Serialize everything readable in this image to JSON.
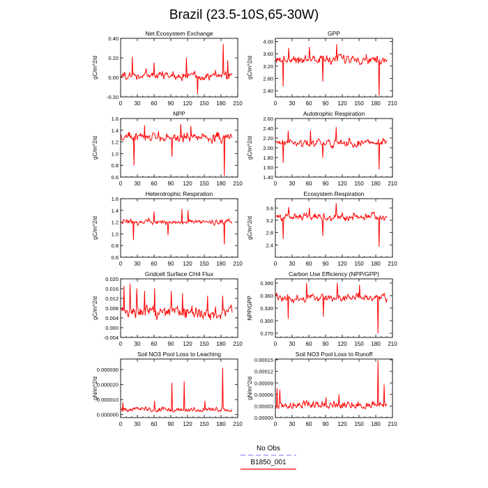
{
  "figure": {
    "title": "Brazil (23.5-10S,65-30W)"
  },
  "legend": {
    "entries": [
      {
        "label": "No Obs",
        "color": "#8c8cff",
        "style": "dashed"
      },
      {
        "label": "B1850_001",
        "color": "#ff0000",
        "style": "solid"
      }
    ]
  },
  "colors": {
    "series": "#ff0000"
  },
  "chart_data": [
    {
      "type": "line",
      "title": "Net Ecosystem Exchange",
      "ylabel": "gC/m^2/d",
      "xlim": [
        0,
        210
      ],
      "xticks": [
        0,
        30,
        60,
        90,
        120,
        150,
        180,
        210
      ],
      "ylim": [
        -0.2,
        0.4
      ],
      "yticks": [
        "-0.20",
        "0.00",
        "0.20",
        "0.40"
      ],
      "ytickvals": [
        -0.2,
        0,
        0.2,
        0.4
      ],
      "series": [
        {
          "length": 200,
          "base": 0.02,
          "amp": 0.07,
          "min": -0.17,
          "max": 0.34,
          "peaks": [
            [
              183,
              0.34
            ],
            [
              137,
              -0.17
            ],
            [
              20,
              0.21
            ],
            [
              117,
              0.2
            ],
            [
              59,
              0.15
            ],
            [
              191,
              0.17
            ]
          ]
        }
      ]
    },
    {
      "type": "line",
      "title": "GPP",
      "ylabel": "gC/m^2/d",
      "xlim": [
        0,
        210
      ],
      "xticks": [
        0,
        30,
        60,
        90,
        120,
        150,
        180,
        210
      ],
      "ylim": [
        2.2,
        4.1
      ],
      "yticks": [
        "2.40",
        "2.80",
        "3.20",
        "3.60",
        "4.00"
      ],
      "ytickvals": [
        2.4,
        2.8,
        3.2,
        3.6,
        4.0
      ],
      "series": [
        {
          "length": 200,
          "base": 3.42,
          "amp": 0.22,
          "min": 2.25,
          "max": 3.9,
          "peaks": [
            [
              185,
              2.25
            ],
            [
              13,
              2.55
            ],
            [
              109,
              3.9
            ],
            [
              84,
              2.7
            ],
            [
              23,
              3.78
            ],
            [
              60,
              3.82
            ]
          ]
        }
      ]
    },
    {
      "type": "line",
      "title": "NPP",
      "ylabel": "gC/m^2/d",
      "xlim": [
        0,
        210
      ],
      "xticks": [
        0,
        30,
        60,
        90,
        120,
        150,
        180,
        210
      ],
      "ylim": [
        0.6,
        1.6
      ],
      "yticks": [
        "0.6",
        "0.8",
        "1.0",
        "1.2",
        "1.4",
        "1.6"
      ],
      "ytickvals": [
        0.6,
        0.8,
        1.0,
        1.2,
        1.4,
        1.6
      ],
      "series": [
        {
          "length": 200,
          "base": 1.28,
          "amp": 0.12,
          "min": 0.62,
          "max": 1.52,
          "peaks": [
            [
              185,
              0.62
            ],
            [
              23,
              0.8
            ],
            [
              107,
              1.5
            ],
            [
              91,
              0.95
            ],
            [
              125,
              1.47
            ],
            [
              42,
              1.48
            ]
          ]
        }
      ]
    },
    {
      "type": "line",
      "title": "Autotrophic Respiration",
      "ylabel": "gC/m^2/d",
      "xlim": [
        0,
        210
      ],
      "xticks": [
        0,
        30,
        60,
        90,
        120,
        150,
        180,
        210
      ],
      "ylim": [
        1.4,
        2.6
      ],
      "yticks": [
        "1.40",
        "1.60",
        "1.80",
        "2.00",
        "2.20",
        "2.40",
        "2.60"
      ],
      "ytickvals": [
        1.4,
        1.6,
        1.8,
        2.0,
        2.2,
        2.4,
        2.6
      ],
      "series": [
        {
          "length": 200,
          "base": 2.1,
          "amp": 0.12,
          "min": 1.56,
          "max": 2.42,
          "peaks": [
            [
              185,
              1.56
            ],
            [
              13,
              1.7
            ],
            [
              108,
              2.42
            ],
            [
              84,
              1.8
            ],
            [
              62,
              2.35
            ],
            [
              22,
              2.35
            ]
          ]
        }
      ]
    },
    {
      "type": "line",
      "title": "Heterotrophic Respiration",
      "ylabel": "gC/m^2/d",
      "xlim": [
        0,
        210
      ],
      "xticks": [
        0,
        30,
        60,
        90,
        120,
        150,
        180,
        210
      ],
      "ylim": [
        0.6,
        1.6
      ],
      "yticks": [
        "0.6",
        "0.8",
        "1.0",
        "1.2",
        "1.4",
        "1.6"
      ],
      "ytickvals": [
        0.6,
        0.8,
        1.0,
        1.2,
        1.4,
        1.6
      ],
      "series": [
        {
          "length": 200,
          "base": 1.2,
          "amp": 0.07,
          "min": 0.82,
          "max": 1.42,
          "peaks": [
            [
              185,
              0.82
            ],
            [
              22,
              0.9
            ],
            [
              109,
              1.42
            ],
            [
              84,
              0.98
            ],
            [
              59,
              1.38
            ],
            [
              120,
              1.4
            ]
          ]
        }
      ]
    },
    {
      "type": "line",
      "title": "Ecosystem Respiration",
      "ylabel": "gC/m^2/d",
      "xlim": [
        0,
        210
      ],
      "xticks": [
        0,
        30,
        60,
        90,
        120,
        150,
        180,
        210
      ],
      "ylim": [
        2.0,
        3.9
      ],
      "yticks": [
        "2.4",
        "2.8",
        "3.2",
        "3.6"
      ],
      "ytickvals": [
        2.4,
        2.8,
        3.2,
        3.6
      ],
      "series": [
        {
          "length": 200,
          "base": 3.3,
          "amp": 0.2,
          "min": 2.35,
          "max": 3.75,
          "peaks": [
            [
              185,
              2.35
            ],
            [
              13,
              2.6
            ],
            [
              108,
              3.75
            ],
            [
              84,
              2.7
            ],
            [
              23,
              3.62
            ],
            [
              60,
              3.6
            ]
          ]
        }
      ]
    },
    {
      "type": "line",
      "title": "Gridcell Surface CH4 Flux",
      "ylabel": "gC/m^2/d",
      "xlim": [
        0,
        210
      ],
      "xticks": [
        0,
        30,
        60,
        90,
        120,
        150,
        180,
        210
      ],
      "ylim": [
        -0.004,
        0.02
      ],
      "yticks": [
        "-0.004",
        "0.000",
        "0.004",
        "0.008",
        "0.012",
        "0.016",
        "0.020"
      ],
      "ytickvals": [
        -0.004,
        0,
        0.004,
        0.008,
        0.012,
        0.016,
        0.02
      ],
      "series": [
        {
          "length": 200,
          "base": 0.006,
          "amp": 0.004,
          "min": 0.0005,
          "max": 0.018,
          "peaks": [
            [
              5,
              0.017
            ],
            [
              16,
              0.018
            ],
            [
              28,
              0.016
            ],
            [
              42,
              0.015
            ],
            [
              60,
              0.016
            ],
            [
              90,
              0.015
            ],
            [
              110,
              0.014
            ],
            [
              155,
              0.013
            ],
            [
              182,
              0.013
            ]
          ]
        }
      ]
    },
    {
      "type": "line",
      "title": "Carbon Use Efficiency (NPP/GPP)",
      "ylabel": "NPP/GPP",
      "xlim": [
        0,
        210
      ],
      "xticks": [
        0,
        30,
        60,
        90,
        120,
        150,
        180,
        210
      ],
      "ylim": [
        0.26,
        0.4
      ],
      "yticks": [
        "0.270",
        "0.300",
        "0.330",
        "0.360",
        "0.390"
      ],
      "ytickvals": [
        0.27,
        0.3,
        0.33,
        0.36,
        0.39
      ],
      "series": [
        {
          "length": 200,
          "base": 0.355,
          "amp": 0.014,
          "min": 0.27,
          "max": 0.392,
          "peaks": [
            [
              183,
              0.27
            ],
            [
              22,
              0.305
            ],
            [
              110,
              0.39
            ],
            [
              55,
              0.39
            ],
            [
              85,
              0.31
            ],
            [
              150,
              0.385
            ]
          ]
        }
      ]
    },
    {
      "type": "line",
      "title": "Soil NO3 Pool Loss to Leaching",
      "ylabel": "gN/m^2/d",
      "xlim": [
        0,
        210
      ],
      "xticks": [
        0,
        30,
        60,
        90,
        120,
        150,
        180,
        210
      ],
      "ylim": [
        -2e-06,
        3.7e-05
      ],
      "yticks": [
        "0.000000",
        "0.000010",
        "0.000020",
        "0.000030"
      ],
      "ytickvals": [
        0,
        1e-05,
        2e-05,
        3e-05
      ],
      "series": [
        {
          "length": 200,
          "base": 2e-06,
          "amp": 1.5e-06,
          "min": 1e-07,
          "max": 3.1e-05,
          "skew": true,
          "peaks": [
            [
              182,
              3.1e-05
            ],
            [
              91,
              2.1e-05
            ],
            [
              113,
              2.2e-05
            ],
            [
              3,
              8e-06
            ],
            [
              60,
              9e-06
            ],
            [
              150,
              9e-06
            ]
          ]
        }
      ]
    },
    {
      "type": "line",
      "title": "Soil NO3 Pool Loss to Runoff",
      "ylabel": "gN/m^2/d",
      "xlim": [
        0,
        210
      ],
      "xticks": [
        0,
        30,
        60,
        90,
        120,
        150,
        180,
        210
      ],
      "ylim": [
        0,
        0.000152
      ],
      "yticks": [
        "0.00000",
        "0.00003",
        "0.00006",
        "0.00009",
        "0.00012",
        "0.00015"
      ],
      "ytickvals": [
        0,
        3e-05,
        6e-05,
        9e-05,
        0.00012,
        0.00015
      ],
      "series": [
        {
          "length": 200,
          "base": 2.5e-05,
          "amp": 1e-05,
          "min": 5e-06,
          "max": 0.000148,
          "skew": true,
          "peaks": [
            [
              183,
              0.000148
            ],
            [
              2,
              7.5e-05
            ],
            [
              7,
              7.2e-05
            ],
            [
              194,
              8.5e-05
            ],
            [
              113,
              6e-05
            ],
            [
              90,
              5.2e-05
            ]
          ]
        }
      ]
    }
  ]
}
